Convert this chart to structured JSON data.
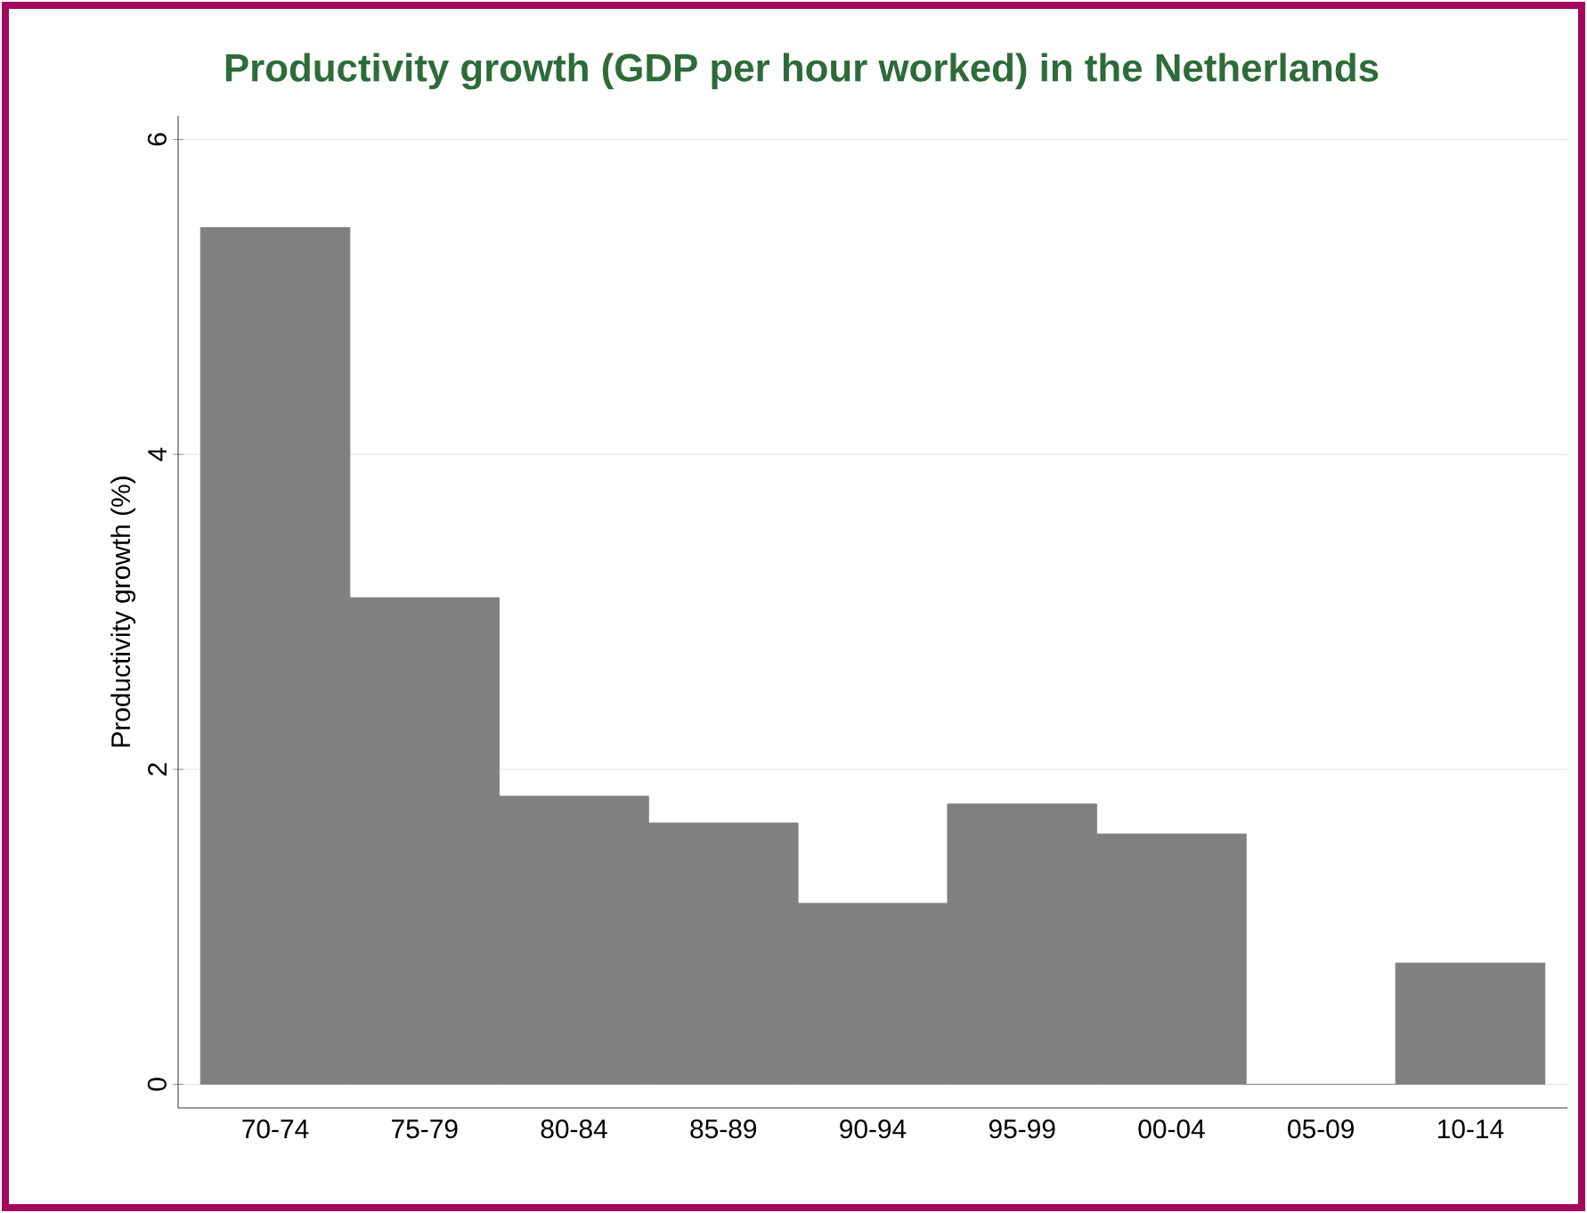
{
  "chart_data": {
    "type": "bar",
    "title": "Productivity growth (GDP per hour worked) in the Netherlands",
    "ylabel": "Productivity growth (%)",
    "categories": [
      "70-74",
      "75-79",
      "80-84",
      "85-89",
      "90-94",
      "95-99",
      "00-04",
      "05-09",
      "10-14"
    ],
    "values": [
      5.44,
      3.09,
      1.83,
      1.66,
      1.15,
      1.78,
      1.59,
      0,
      0.77
    ],
    "color": "#808080",
    "ylim": [
      -0.15,
      6.15
    ],
    "yticks": [
      0,
      2,
      4,
      6
    ],
    "grid": "y"
  }
}
